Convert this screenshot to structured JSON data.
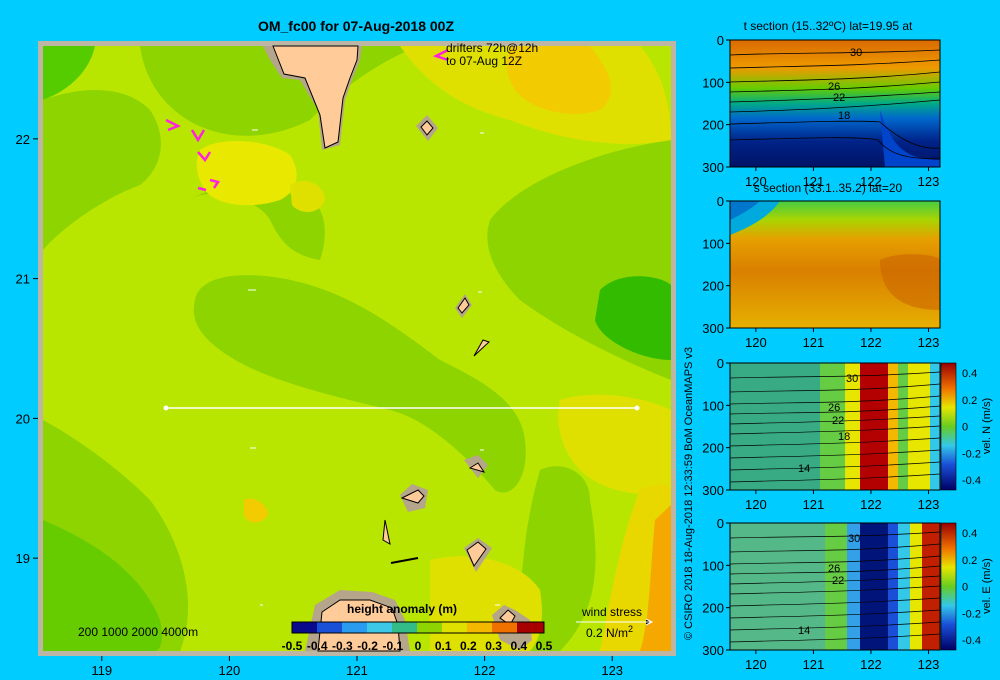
{
  "chart_data": [
    {
      "type": "heatmap",
      "title": "OM_fc00 for 07-Aug-2018 00Z",
      "x_ticks": [
        "119",
        "120",
        "121",
        "122",
        "123"
      ],
      "y_ticks": [
        "19",
        "20",
        "21",
        "22"
      ],
      "xlim": [
        118.5,
        123.5
      ],
      "ylim": [
        18.3,
        22.7
      ],
      "drifters_label": "drifters 72h@12h",
      "drifters_label2": "to 07-Aug 12Z",
      "depth_legend": "200  1000  2000  4000m",
      "colorbar": {
        "label": "height anomaly (m)",
        "ticks": [
          "-0.5",
          "-0.4",
          "-0.3",
          "-0.2",
          "-0.1",
          "0",
          "0.1",
          "0.2",
          "0.3",
          "0.4",
          "0.5"
        ],
        "range": [
          -0.5,
          0.5
        ]
      },
      "wind_stress_label": "wind stress",
      "wind_stress_scale": "0.2 N/m",
      "wind_stress_sup": "2",
      "section_latitude": 20,
      "section_lon_range": [
        119.5,
        123.2
      ]
    },
    {
      "type": "heatmap",
      "title": "t section (15..32ºC) lat=19.95 at",
      "x_ticks": [
        "120",
        "121",
        "122",
        "123"
      ],
      "y_ticks": [
        "0",
        "100",
        "200",
        "300"
      ],
      "contour_labels": [
        "30",
        "26",
        "22",
        "18"
      ]
    },
    {
      "type": "heatmap",
      "title": "s section (33.1..35.2) lat=20",
      "x_ticks": [
        "120",
        "121",
        "122",
        "123"
      ],
      "y_ticks": [
        "0",
        "100",
        "200",
        "300"
      ]
    },
    {
      "type": "heatmap",
      "title": "",
      "colorbar_label": "vel. N (m/s)",
      "colorbar_ticks": [
        "0.4",
        "0.2",
        "0",
        "-0.2",
        "-0.4"
      ],
      "x_ticks": [
        "120",
        "121",
        "122",
        "123"
      ],
      "y_ticks": [
        "0",
        "100",
        "200",
        "300"
      ],
      "contour_labels": [
        "30",
        "26",
        "22",
        "18",
        "14"
      ]
    },
    {
      "type": "heatmap",
      "title": "",
      "colorbar_label": "vel. E (m/s)",
      "colorbar_ticks": [
        "0.4",
        "0.2",
        "0",
        "-0.2",
        "-0.4"
      ],
      "x_ticks": [
        "120",
        "121",
        "122",
        "123"
      ],
      "y_ticks": [
        "0",
        "100",
        "200",
        "300"
      ],
      "contour_labels": [
        "30",
        "26",
        "22",
        "14"
      ]
    }
  ],
  "credit": "© CSIRO 2018   18-Aug-2018 12:33:59 BoM OceanMAPS v3"
}
